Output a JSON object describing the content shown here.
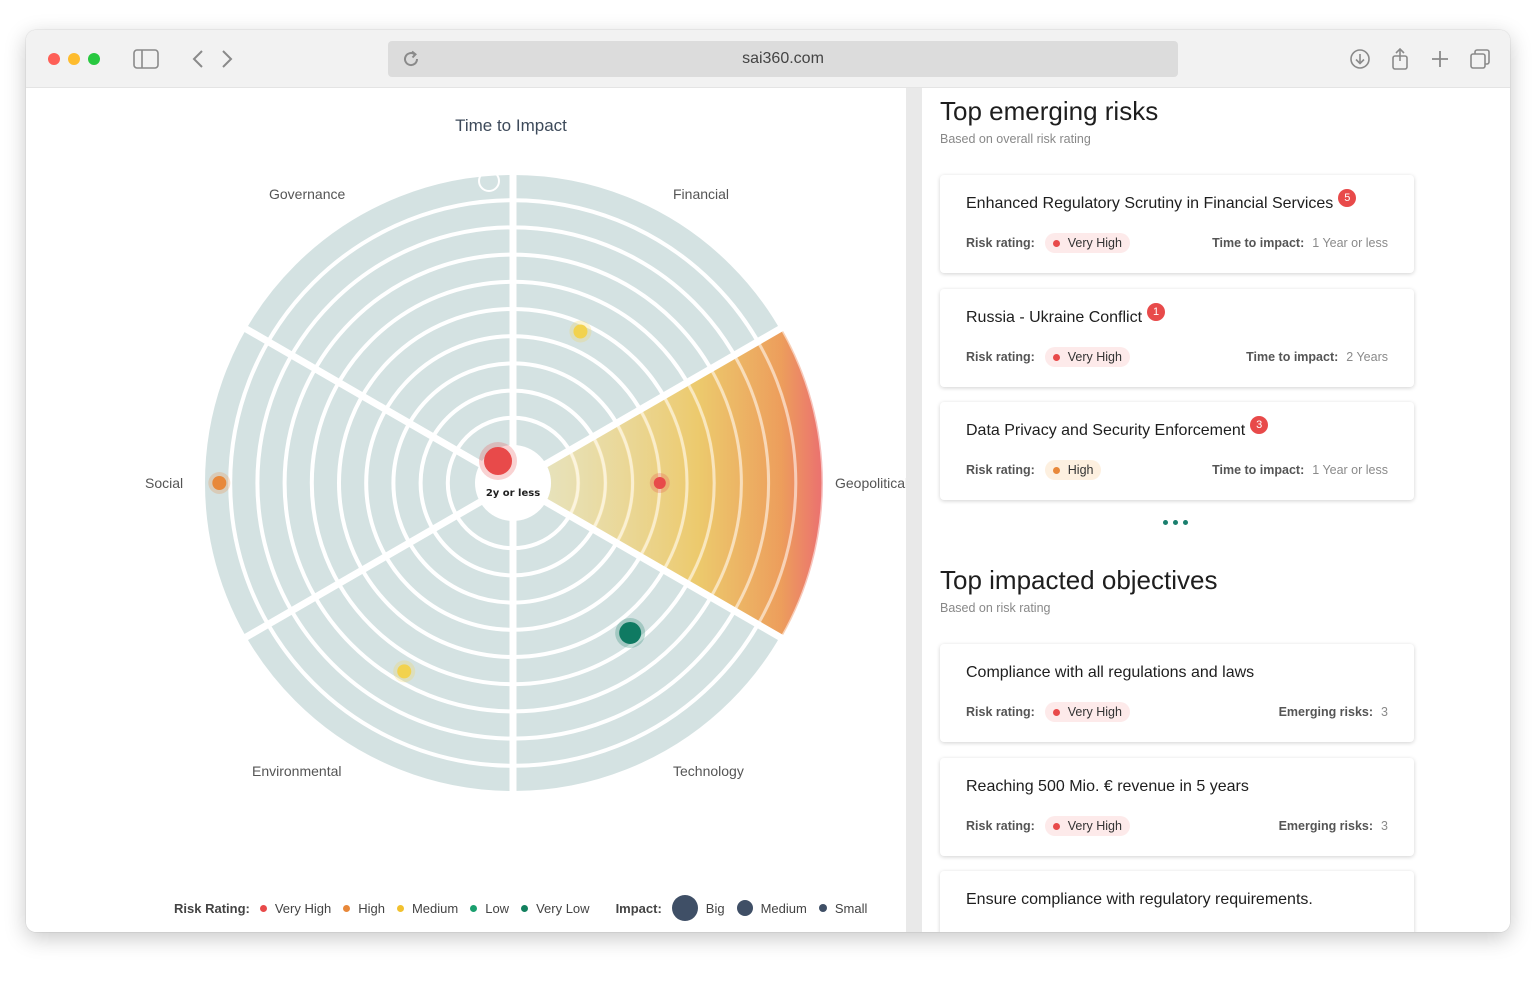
{
  "browser": {
    "url": "sai360.com",
    "icons": [
      "sidebar-icon",
      "back-icon",
      "forward-icon",
      "reload-icon",
      "download-icon",
      "share-icon",
      "new-tab-icon",
      "tabs-icon"
    ]
  },
  "chart": {
    "title": "Time to Impact",
    "center_label": "2y or less",
    "segments": [
      "Governance",
      "Financial",
      "Geopolitical",
      "Technology",
      "Environmental",
      "Social"
    ],
    "highlighted_segment": "Geopolitical"
  },
  "chart_data": {
    "type": "radar-bubble",
    "title": "Time to Impact",
    "center_label": "2y or less",
    "segments": [
      "Governance",
      "Financial",
      "Geopolitical",
      "Technology",
      "Environmental",
      "Social"
    ],
    "rings": 10,
    "points": [
      {
        "segment": "Financial",
        "rating": "Medium",
        "impact": "Small",
        "color": "#f2d24e"
      },
      {
        "segment": "Geopolitical",
        "rating": "Very High",
        "impact": "Small",
        "color": "#e84a4a"
      },
      {
        "segment": "Technology",
        "rating": "Very Low",
        "impact": "Big",
        "color": "#0f7a62"
      },
      {
        "segment": "Environmental",
        "rating": "Medium",
        "impact": "Small",
        "color": "#f2d24e"
      },
      {
        "segment": "Social",
        "rating": "High",
        "impact": "Small",
        "color": "#e8883a"
      },
      {
        "segment": "Center",
        "rating": "Very High",
        "impact": "Big",
        "color": "#e84a4a"
      }
    ]
  },
  "legend": {
    "risk_label": "Risk Rating:",
    "risk_items": [
      {
        "label": "Very High",
        "color": "#e84a4a"
      },
      {
        "label": "High",
        "color": "#e8883a"
      },
      {
        "label": "Medium",
        "color": "#f2c12e"
      },
      {
        "label": "Low",
        "color": "#1a9f6e"
      },
      {
        "label": "Very Low",
        "color": "#12805e"
      }
    ],
    "impact_label": "Impact:",
    "impact_items": [
      {
        "label": "Big"
      },
      {
        "label": "Medium"
      },
      {
        "label": "Small"
      }
    ]
  },
  "risks": {
    "title": "Top emerging risks",
    "subtitle": "Based on overall risk rating",
    "items": [
      {
        "title": "Enhanced Regulatory Scrutiny in Financial Services",
        "badge": "5",
        "rating_label": "Risk rating:",
        "rating": "Very High",
        "time_label": "Time to impact:",
        "time": "1 Year or less"
      },
      {
        "title": "Russia - Ukraine Conflict",
        "badge": "1",
        "rating_label": "Risk rating:",
        "rating": "Very High",
        "time_label": "Time to impact:",
        "time": "2 Years"
      },
      {
        "title": "Data Privacy and Security Enforcement",
        "badge": "3",
        "rating_label": "Risk rating:",
        "rating": "High",
        "time_label": "Time to impact:",
        "time": "1 Year or less"
      }
    ]
  },
  "objectives": {
    "title": "Top impacted objectives",
    "subtitle": "Based on risk rating",
    "items": [
      {
        "title": "Compliance with all regulations and laws",
        "rating_label": "Risk rating:",
        "rating": "Very High",
        "emerging_label": "Emerging risks:",
        "emerging": "3"
      },
      {
        "title": "Reaching 500 Mio. € revenue in 5 years",
        "rating_label": "Risk rating:",
        "rating": "Very High",
        "emerging_label": "Emerging risks:",
        "emerging": "3"
      },
      {
        "title": "Ensure compliance with regulatory requirements."
      }
    ]
  },
  "colors": {
    "very_high": "#e84a4a",
    "high": "#e8883a",
    "pill_very_high_bg": "#fdeaea",
    "pill_high_bg": "#fdf0e0",
    "ring": "#d4e2e2",
    "impact_dark": "#3f4f66",
    "accent": "#1a7f6e"
  }
}
